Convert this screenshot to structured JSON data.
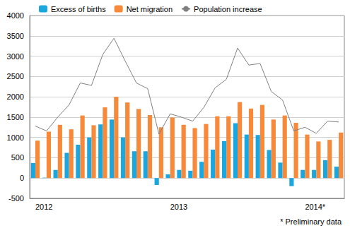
{
  "chart_data": {
    "type": "bar",
    "categories": [
      "2012",
      null,
      null,
      null,
      null,
      null,
      null,
      null,
      null,
      null,
      null,
      null,
      "2013",
      null,
      null,
      null,
      null,
      null,
      null,
      null,
      null,
      null,
      null,
      null,
      "2014*",
      null,
      null,
      null
    ],
    "series": [
      {
        "name": "Excess of births",
        "type": "bar",
        "color": "#1aa7e0",
        "values": [
          370,
          10,
          200,
          620,
          820,
          1000,
          1320,
          1440,
          1000,
          660,
          660,
          -170,
          90,
          200,
          180,
          400,
          700,
          910,
          1350,
          1070,
          1060,
          690,
          380,
          -200,
          200,
          200,
          440,
          280
        ]
      },
      {
        "name": "Net migration",
        "type": "bar",
        "color": "#f7893b",
        "values": [
          920,
          1140,
          1310,
          1200,
          1540,
          1300,
          1740,
          2000,
          1860,
          1700,
          1550,
          1250,
          1490,
          1310,
          1230,
          1330,
          1520,
          1520,
          1870,
          1710,
          1800,
          1440,
          1540,
          1360,
          1070,
          900,
          940,
          1120
        ]
      },
      {
        "name": "Population increase",
        "type": "line",
        "color": "#7f7f7f",
        "values": [
          1280,
          1160,
          1500,
          1800,
          2340,
          2280,
          3040,
          3440,
          2880,
          2340,
          2200,
          1080,
          1580,
          1500,
          1400,
          1740,
          2220,
          2430,
          3200,
          2780,
          2820,
          2130,
          1920,
          1160,
          1250,
          1100,
          1400,
          1380
        ]
      }
    ],
    "ylim": [
      -500,
      4000
    ],
    "yticks": [
      -500,
      0,
      500,
      1000,
      1500,
      2000,
      2500,
      3000,
      3500,
      4000
    ],
    "grid": true,
    "legend": "top",
    "annotations": [
      "* Preliminary data"
    ]
  }
}
